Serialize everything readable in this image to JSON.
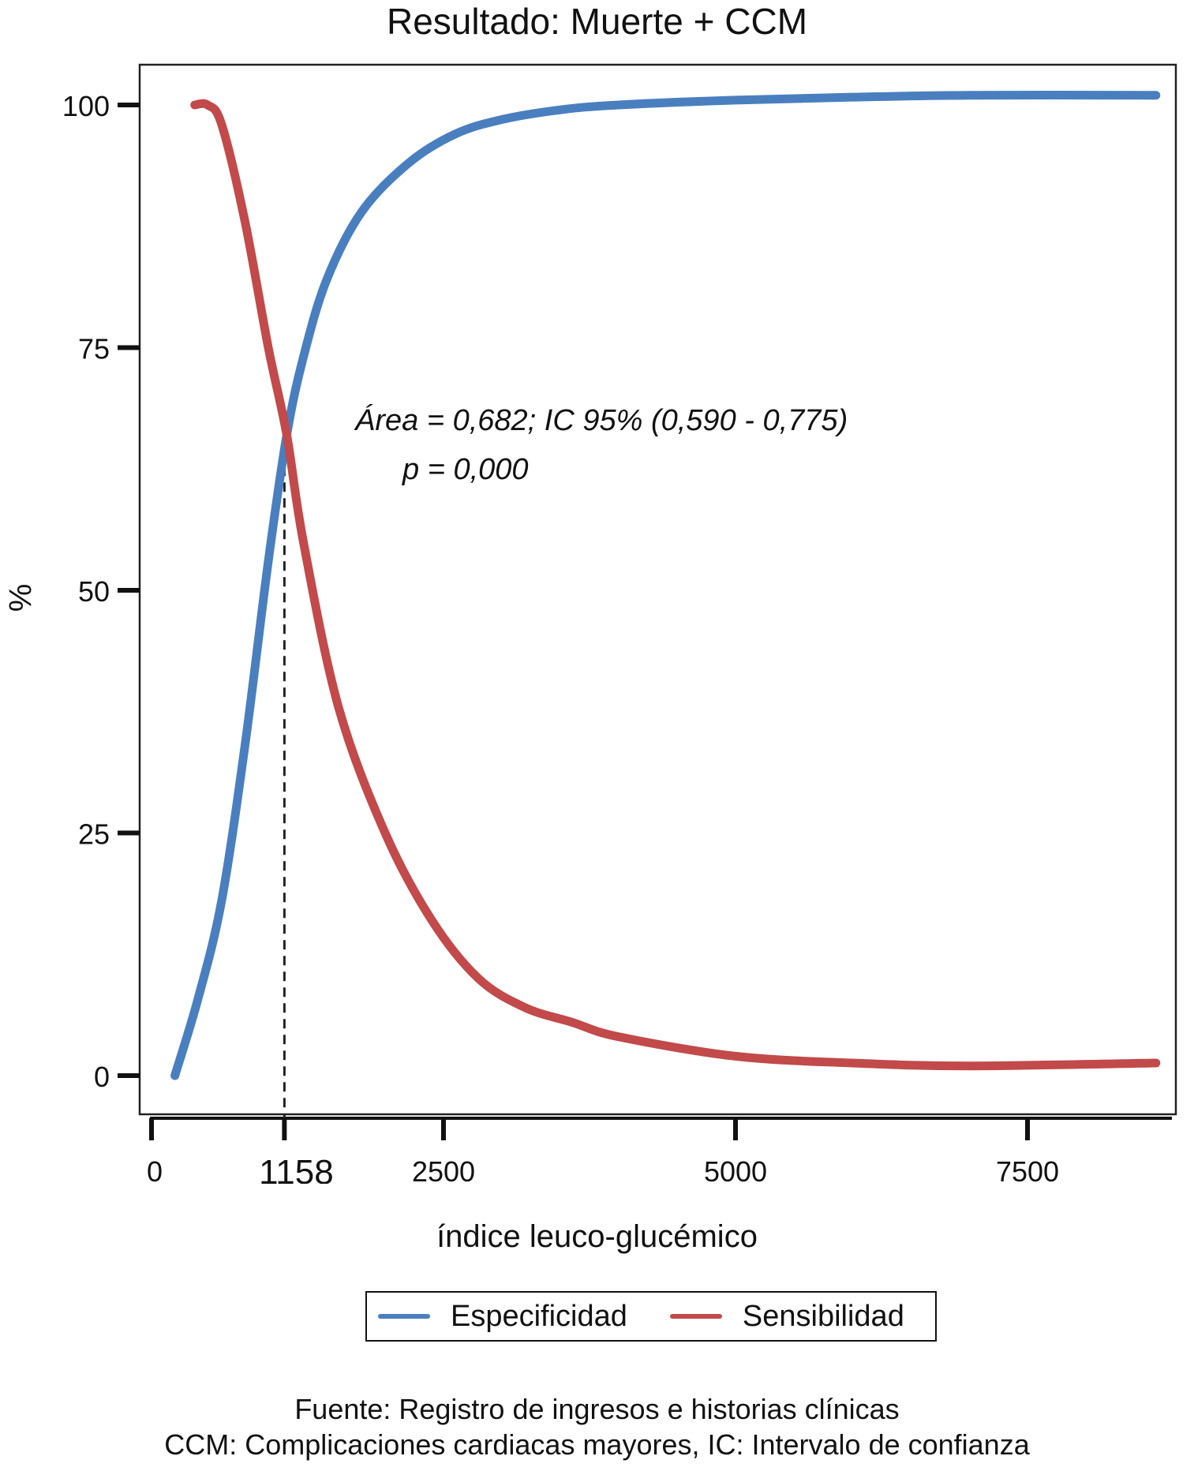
{
  "chart_data": {
    "type": "line",
    "title": "Resultado: Muerte + CCM",
    "xlabel": "índice leuco-glucémico",
    "ylabel": "%",
    "xlim": [
      0,
      8700
    ],
    "ylim": [
      0,
      100
    ],
    "xticks": [
      0,
      2500,
      5000,
      7500
    ],
    "yticks": [
      0,
      25,
      50,
      75,
      100
    ],
    "cutoff": {
      "x": 1158,
      "label": "1158"
    },
    "series": [
      {
        "name": "Especificidad",
        "color": "#4a7fbf",
        "x": [
          200,
          400,
          600,
          800,
          1000,
          1158,
          1300,
          1500,
          1800,
          2200,
          2600,
          3000,
          3500,
          4000,
          5000,
          6000,
          7000,
          8600
        ],
        "y": [
          0,
          8,
          18,
          34,
          53,
          66,
          74,
          82,
          89,
          94,
          97,
          98.5,
          99.5,
          100,
          100.5,
          100.8,
          101,
          101
        ]
      },
      {
        "name": "Sensibilidad",
        "color": "#c24a4a",
        "x": [
          370,
          480,
          600,
          800,
          1000,
          1158,
          1300,
          1600,
          2000,
          2400,
          2800,
          3200,
          3600,
          4000,
          5000,
          6000,
          7000,
          8600
        ],
        "y": [
          100,
          100,
          98,
          88,
          75,
          66,
          55,
          38,
          25,
          16,
          10,
          7,
          5.5,
          4,
          2,
          1.3,
          1,
          1.3
        ]
      }
    ],
    "legend": "bottom",
    "grid": false
  },
  "annotation": {
    "line1": "Área = 0,682; IC 95% (0,590 - 0,775)",
    "line2": "p = 0,000"
  },
  "footer": {
    "line1": "Fuente: Registro de ingresos e historias clínicas",
    "line2": "CCM: Complicaciones cardiacas mayores, IC: Intervalo de confianza"
  }
}
